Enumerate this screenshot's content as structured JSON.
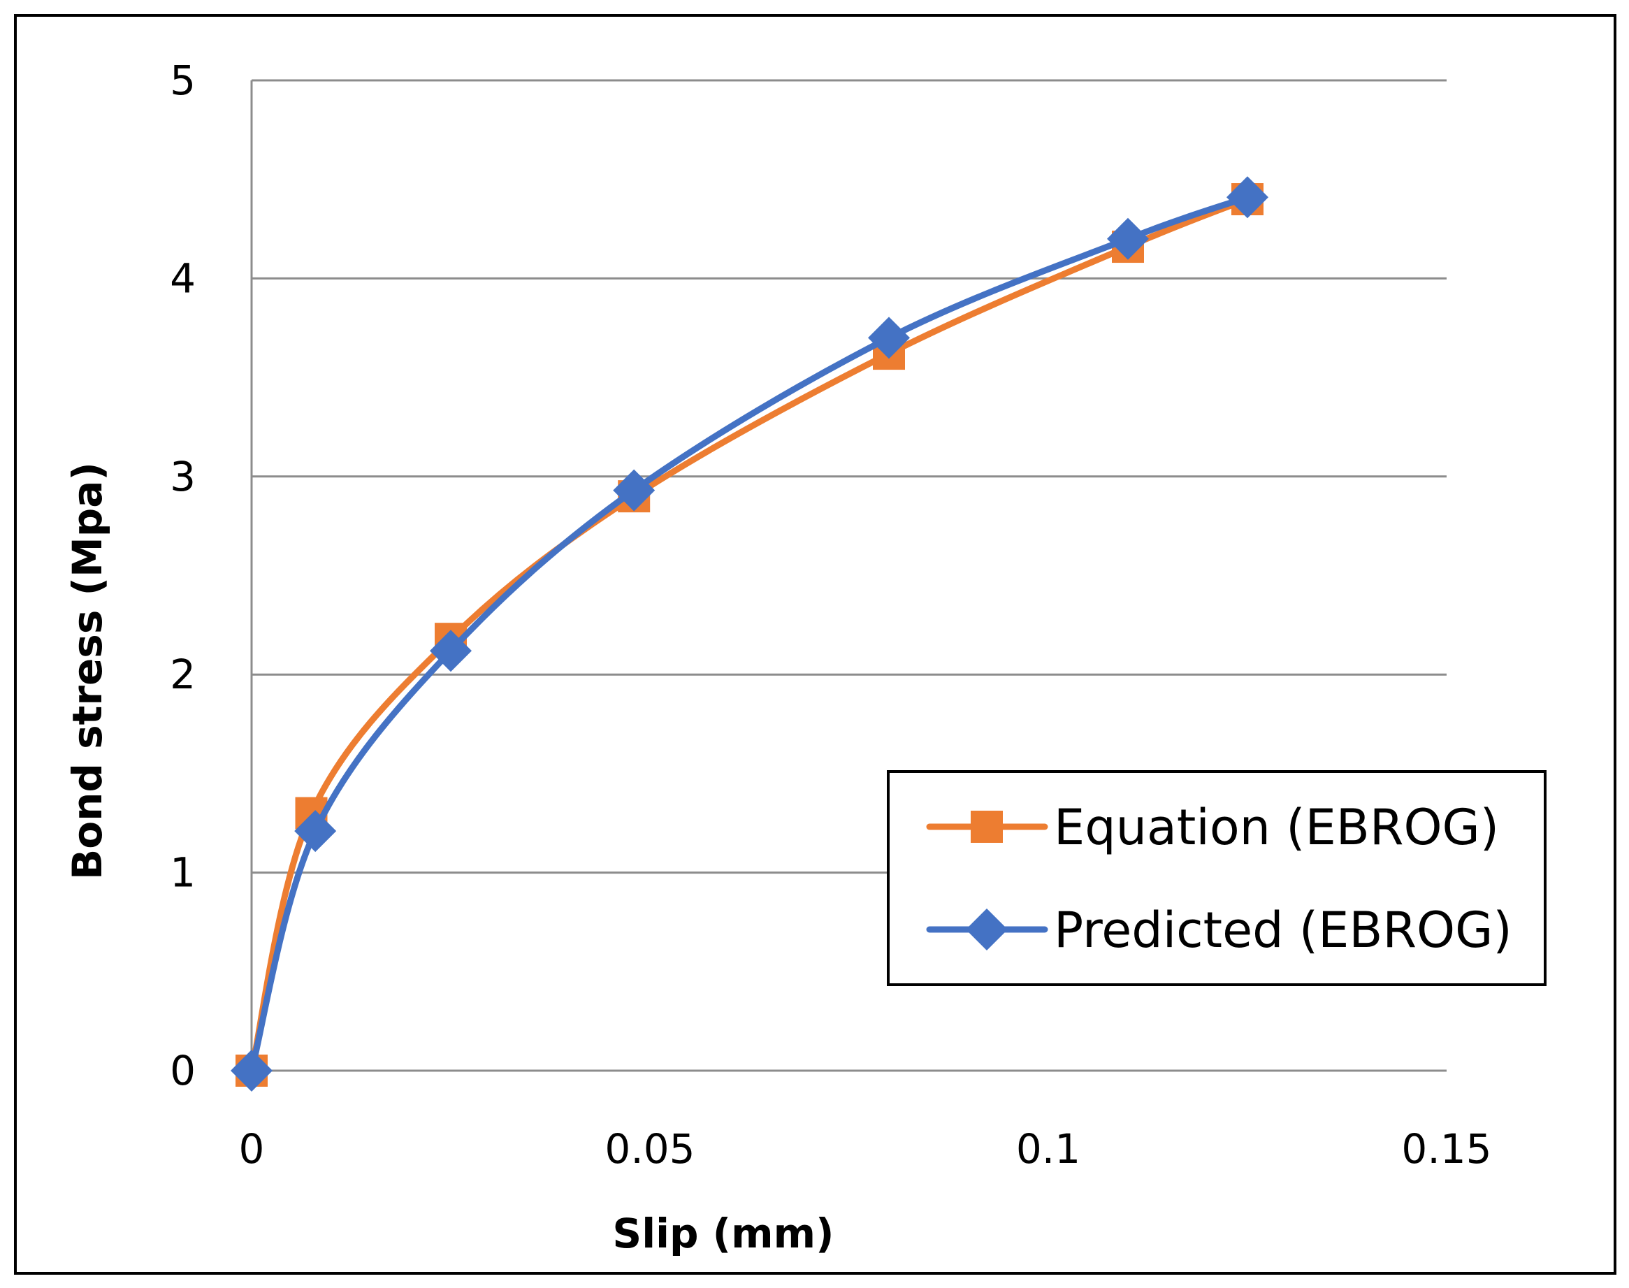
{
  "chart_data": {
    "type": "line",
    "title": "",
    "xlabel": "Slip (mm)",
    "ylabel": "Bond stress (Mpa)",
    "xlim": [
      0,
      0.15
    ],
    "ylim": [
      0,
      5
    ],
    "xticks": [
      0,
      0.05,
      0.1,
      0.15
    ],
    "xtick_labels": [
      "0",
      "0.05",
      "0.1",
      "0.15"
    ],
    "yticks": [
      0,
      1,
      2,
      3,
      4,
      5
    ],
    "ytick_labels": [
      "0",
      "1",
      "2",
      "3",
      "4",
      "5"
    ],
    "grid": "horizontal",
    "smoothed": true,
    "legend_position": "bottom-right",
    "series": [
      {
        "name": "Equation (EBROG)",
        "marker": "square",
        "color": "#ED7D31",
        "points": [
          {
            "x": 0,
            "y": 0
          },
          {
            "x": 0.0075,
            "y": 1.3
          },
          {
            "x": 0.025,
            "y": 2.18
          },
          {
            "x": 0.048,
            "y": 2.9
          },
          {
            "x": 0.08,
            "y": 3.62
          },
          {
            "x": 0.11,
            "y": 4.16
          },
          {
            "x": 0.125,
            "y": 4.4
          }
        ]
      },
      {
        "name": "Predicted (EBROG)",
        "marker": "diamond",
        "color": "#4472C4",
        "points": [
          {
            "x": 0,
            "y": 0
          },
          {
            "x": 0.008,
            "y": 1.21
          },
          {
            "x": 0.025,
            "y": 2.12
          },
          {
            "x": 0.048,
            "y": 2.93
          },
          {
            "x": 0.08,
            "y": 3.7
          },
          {
            "x": 0.11,
            "y": 4.2
          },
          {
            "x": 0.125,
            "y": 4.41
          }
        ]
      }
    ]
  }
}
